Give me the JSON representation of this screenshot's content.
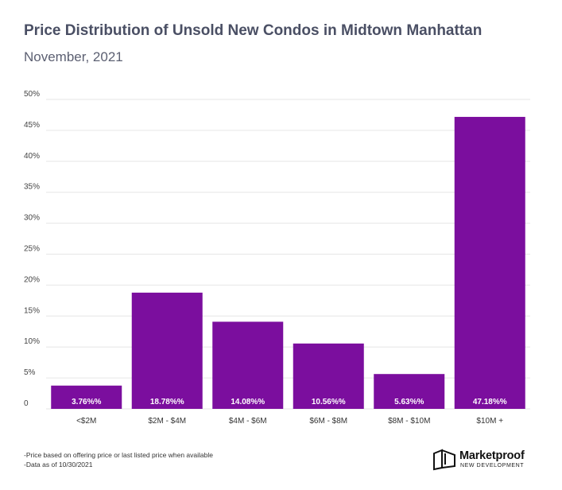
{
  "header": {
    "title": "Price Distribution of Unsold New Condos in Midtown Manhattan",
    "subtitle": "November, 2021"
  },
  "chart_data": {
    "type": "bar",
    "title": "Price Distribution of Unsold New Condos in Midtown Manhattan",
    "subtitle": "November, 2021",
    "categories": [
      "<$2M",
      "$2M - $4M",
      "$4M - $6M",
      "$6M - $8M",
      "$8M - $10M",
      "$10M +"
    ],
    "values": [
      3.76,
      18.78,
      14.08,
      10.56,
      5.63,
      47.18
    ],
    "data_labels": [
      "3.76%%",
      "18.78%%",
      "14.08%%",
      "10.56%%",
      "5.63%%",
      "47.18%%"
    ],
    "y_ticks": [
      "0",
      "5%",
      "10%",
      "15%",
      "20%",
      "25%",
      "30%",
      "35%",
      "40%",
      "45%",
      "50%"
    ],
    "ylim": [
      0,
      50
    ],
    "grid": true,
    "bar_color": "#7b0e9e",
    "grid_color": "#e6e6e6"
  },
  "footnotes": [
    "-Price based on offering price or last listed price when available",
    "-Data as of 10/30/2021"
  ],
  "logo": {
    "name": "Marketproof",
    "tagline": "NEW DEVELOPMENT",
    "icon": "marketproof-logo-icon"
  }
}
